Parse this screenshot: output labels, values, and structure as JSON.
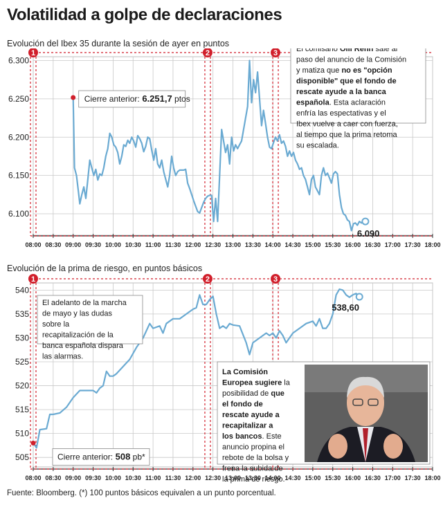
{
  "title": "Volatilidad a golpe de declaraciones",
  "source": "Fuente: Bloomberg. (*) 100 puntos básicos equivalen a un punto porcentual.",
  "colors": {
    "line": "#6aaad2",
    "grid": "#c8c8c8",
    "marker": "#d11f2b",
    "panel": "#efefef",
    "axis": "#333333"
  },
  "time_ticks": [
    "08:00",
    "08:30",
    "09:00",
    "09:30",
    "10:00",
    "10:30",
    "11:00",
    "11:30",
    "12:00",
    "12:30",
    "13:00",
    "13:30",
    "14:00",
    "14:30",
    "15:00",
    "15:30",
    "16:00",
    "16:30",
    "17:00",
    "17:30",
    "18:00"
  ],
  "chart_data": [
    {
      "type": "line",
      "title": "Evolución del Ibex 35 durante la sesión de ayer en puntos",
      "xlabel": "",
      "ylabel": "",
      "ylim": [
        6072,
        6305
      ],
      "yticks": [
        6100,
        6150,
        6200,
        6250,
        6300
      ],
      "ytick_labels": [
        "6.100",
        "6.150",
        "6.200",
        "6.250",
        "6.300"
      ],
      "series": [
        {
          "values": [
            [
              "09:00",
              6251.7
            ],
            [
              "09:02",
              6160
            ],
            [
              "09:05",
              6150
            ],
            [
              "09:08",
              6128
            ],
            [
              "09:10",
              6113
            ],
            [
              "09:13",
              6125
            ],
            [
              "09:16",
              6135
            ],
            [
              "09:19",
              6120
            ],
            [
              "09:22",
              6145
            ],
            [
              "09:25",
              6170
            ],
            [
              "09:28",
              6160
            ],
            [
              "09:31",
              6150
            ],
            [
              "09:34",
              6158
            ],
            [
              "09:37",
              6144
            ],
            [
              "09:40",
              6152
            ],
            [
              "09:43",
              6150
            ],
            [
              "09:46",
              6160
            ],
            [
              "09:49",
              6175
            ],
            [
              "09:52",
              6185
            ],
            [
              "09:55",
              6205
            ],
            [
              "09:58",
              6200
            ],
            [
              "10:01",
              6190
            ],
            [
              "10:04",
              6187
            ],
            [
              "10:07",
              6180
            ],
            [
              "10:10",
              6165
            ],
            [
              "10:13",
              6175
            ],
            [
              "10:16",
              6190
            ],
            [
              "10:19",
              6188
            ],
            [
              "10:22",
              6196
            ],
            [
              "10:25",
              6192
            ],
            [
              "10:28",
              6200
            ],
            [
              "10:31",
              6195
            ],
            [
              "10:34",
              6187
            ],
            [
              "10:37",
              6202
            ],
            [
              "10:40",
              6198
            ],
            [
              "10:43",
              6192
            ],
            [
              "10:46",
              6181
            ],
            [
              "10:49",
              6188
            ],
            [
              "10:52",
              6200
            ],
            [
              "10:55",
              6198
            ],
            [
              "10:58",
              6183
            ],
            [
              "11:01",
              6170
            ],
            [
              "11:04",
              6185
            ],
            [
              "11:07",
              6165
            ],
            [
              "11:10",
              6160
            ],
            [
              "11:13",
              6170
            ],
            [
              "11:16",
              6155
            ],
            [
              "11:19",
              6145
            ],
            [
              "11:22",
              6135
            ],
            [
              "11:25",
              6150
            ],
            [
              "11:28",
              6175
            ],
            [
              "11:31",
              6160
            ],
            [
              "11:34",
              6150
            ],
            [
              "11:37",
              6155
            ],
            [
              "11:40",
              6157
            ],
            [
              "11:43",
              6157
            ],
            [
              "11:46",
              6157
            ],
            [
              "11:49",
              6158
            ],
            [
              "11:52",
              6140
            ],
            [
              "11:55",
              6133
            ],
            [
              "11:58",
              6125
            ],
            [
              "12:01",
              6117
            ],
            [
              "12:04",
              6110
            ],
            [
              "12:07",
              6103
            ],
            [
              "12:10",
              6101
            ],
            [
              "12:13",
              6108
            ],
            [
              "12:16",
              6115
            ],
            [
              "12:19",
              6120
            ],
            [
              "12:22",
              6123
            ],
            [
              "12:25",
              6124
            ],
            [
              "12:28",
              6124
            ],
            [
              "12:31",
              6090
            ],
            [
              "12:34",
              6120
            ],
            [
              "12:37",
              6090
            ],
            [
              "12:40",
              6150
            ],
            [
              "12:43",
              6210
            ],
            [
              "12:46",
              6195
            ],
            [
              "12:49",
              6180
            ],
            [
              "12:52",
              6190
            ],
            [
              "12:55",
              6165
            ],
            [
              "12:58",
              6200
            ],
            [
              "13:01",
              6182
            ],
            [
              "13:04",
              6190
            ],
            [
              "13:07",
              6185
            ],
            [
              "13:10",
              6190
            ],
            [
              "13:13",
              6195
            ],
            [
              "13:16",
              6210
            ],
            [
              "13:19",
              6225
            ],
            [
              "13:22",
              6240
            ],
            [
              "13:25",
              6300
            ],
            [
              "13:28",
              6245
            ],
            [
              "13:31",
              6275
            ],
            [
              "13:34",
              6258
            ],
            [
              "13:37",
              6285
            ],
            [
              "13:40",
              6250
            ],
            [
              "13:43",
              6215
            ],
            [
              "13:46",
              6235
            ],
            [
              "13:49",
              6218
            ],
            [
              "13:52",
              6200
            ],
            [
              "13:55",
              6187
            ],
            [
              "13:58",
              6185
            ],
            [
              "14:01",
              6193
            ],
            [
              "14:04",
              6200
            ],
            [
              "14:07",
              6195
            ],
            [
              "14:10",
              6203
            ],
            [
              "14:13",
              6192
            ],
            [
              "14:16",
              6195
            ],
            [
              "14:19",
              6188
            ],
            [
              "14:22",
              6175
            ],
            [
              "14:25",
              6182
            ],
            [
              "14:28",
              6175
            ],
            [
              "14:31",
              6180
            ],
            [
              "14:34",
              6170
            ],
            [
              "14:37",
              6165
            ],
            [
              "14:40",
              6158
            ],
            [
              "14:43",
              6160
            ],
            [
              "14:46",
              6150
            ],
            [
              "14:49",
              6145
            ],
            [
              "14:52",
              6135
            ],
            [
              "14:55",
              6125
            ],
            [
              "14:58",
              6145
            ],
            [
              "15:01",
              6150
            ],
            [
              "15:04",
              6135
            ],
            [
              "15:07",
              6130
            ],
            [
              "15:10",
              6125
            ],
            [
              "15:13",
              6150
            ],
            [
              "15:16",
              6160
            ],
            [
              "15:19",
              6150
            ],
            [
              "15:22",
              6153
            ],
            [
              "15:25",
              6147
            ],
            [
              "15:28",
              6140
            ],
            [
              "15:31",
              6152
            ],
            [
              "15:34",
              6155
            ],
            [
              "15:37",
              6152
            ],
            [
              "15:40",
              6125
            ],
            [
              "15:43",
              6108
            ],
            [
              "15:46",
              6100
            ],
            [
              "15:49",
              6098
            ],
            [
              "15:52",
              6092
            ],
            [
              "15:55",
              6090
            ],
            [
              "15:58",
              6078
            ],
            [
              "16:01",
              6087
            ],
            [
              "16:04",
              6088
            ],
            [
              "16:07",
              6085
            ],
            [
              "16:10",
              6090
            ],
            [
              "16:13",
              6088
            ],
            [
              "16:16",
              6091
            ],
            [
              "16:19",
              6090
            ]
          ]
        }
      ],
      "start_label": "Cierre anterior:",
      "start_value": "6.251,7",
      "start_unit": "ptos",
      "end_value": "6.090",
      "markers": [
        "1",
        "2",
        "3"
      ],
      "marker_times": [
        "08:00",
        "12:22",
        "14:04"
      ],
      "annotation": {
        "p1": "El comisario ",
        "b1": "Olli Rehn",
        "p2": " sale al paso del anuncio de la Comisión y matiza que ",
        "b2": "no es \"opción disponible\" que el fondo de rescate ayude a la banca española",
        "p3": ". Esta aclaración enfría las espectativas y el Ibex vuelve a caer con fuerza, al tiempo que la prima retoma su escalada."
      }
    },
    {
      "type": "line",
      "title": "Evolución de la prima de riesgo, en puntos básicos",
      "xlabel": "",
      "ylabel": "",
      "ylim": [
        503,
        541.5
      ],
      "yticks": [
        505,
        510,
        515,
        520,
        525,
        530,
        535,
        540
      ],
      "series": [
        {
          "values": [
            [
              "08:00",
              508
            ],
            [
              "08:05",
              507
            ],
            [
              "08:10",
              510.8
            ],
            [
              "08:20",
              511
            ],
            [
              "08:25",
              514
            ],
            [
              "08:30",
              514
            ],
            [
              "08:40",
              514.3
            ],
            [
              "08:50",
              515.5
            ],
            [
              "09:00",
              517.5
            ],
            [
              "09:10",
              519
            ],
            [
              "09:20",
              519
            ],
            [
              "09:30",
              519
            ],
            [
              "09:35",
              518.5
            ],
            [
              "09:40",
              519.5
            ],
            [
              "09:45",
              520
            ],
            [
              "09:50",
              523
            ],
            [
              "09:55",
              522
            ],
            [
              "10:00",
              522
            ],
            [
              "10:05",
              522.5
            ],
            [
              "10:15",
              524
            ],
            [
              "10:25",
              525.5
            ],
            [
              "10:35",
              528
            ],
            [
              "10:45",
              530
            ],
            [
              "10:55",
              533
            ],
            [
              "11:00",
              532
            ],
            [
              "11:10",
              532.5
            ],
            [
              "11:15",
              531
            ],
            [
              "11:20",
              533
            ],
            [
              "11:30",
              534
            ],
            [
              "11:40",
              534
            ],
            [
              "11:50",
              535
            ],
            [
              "12:00",
              536
            ],
            [
              "12:05",
              536.3
            ],
            [
              "12:10",
              539
            ],
            [
              "12:15",
              537
            ],
            [
              "12:20",
              537
            ],
            [
              "12:25",
              538
            ],
            [
              "12:30",
              538.7
            ],
            [
              "12:35",
              535
            ],
            [
              "12:40",
              532
            ],
            [
              "12:45",
              532.5
            ],
            [
              "12:50",
              532
            ],
            [
              "12:55",
              533
            ],
            [
              "13:00",
              532.7
            ],
            [
              "13:10",
              532.5
            ],
            [
              "13:20",
              529
            ],
            [
              "13:25",
              526.5
            ],
            [
              "13:30",
              529
            ],
            [
              "13:40",
              530
            ],
            [
              "13:50",
              531
            ],
            [
              "13:55",
              530.5
            ],
            [
              "14:00",
              531
            ],
            [
              "14:05",
              530
            ],
            [
              "14:10",
              531.5
            ],
            [
              "14:15",
              530.5
            ],
            [
              "14:20",
              529
            ],
            [
              "14:25",
              530
            ],
            [
              "14:30",
              531
            ],
            [
              "14:40",
              532
            ],
            [
              "14:50",
              533
            ],
            [
              "15:00",
              533.5
            ],
            [
              "15:05",
              532.5
            ],
            [
              "15:10",
              534
            ],
            [
              "15:15",
              532
            ],
            [
              "15:20",
              532
            ],
            [
              "15:25",
              533
            ],
            [
              "15:30",
              535
            ],
            [
              "15:35",
              539
            ],
            [
              "15:40",
              540.2
            ],
            [
              "15:45",
              540
            ],
            [
              "15:50",
              539
            ],
            [
              "15:55",
              538.5
            ],
            [
              "16:00",
              539
            ],
            [
              "16:05",
              539.3
            ],
            [
              "16:10",
              538.6
            ]
          ]
        }
      ],
      "start_label": "Cierre anterior:",
      "start_value": "508",
      "start_unit": "pb*",
      "end_value": "538,60",
      "markers": [
        "1",
        "2",
        "3"
      ],
      "marker_times": [
        "08:00",
        "12:22",
        "14:04"
      ],
      "annotation1": "El adelanto de la marcha de mayo y las dudas sobre la recapitalización de la banca española dispara las alarmas.",
      "annotation2": {
        "b1": "La Comisión Europea sugiere",
        "p1": " la posibilidad de ",
        "b2": "que el fondo de rescate ayude a recapitalizar a los bancos",
        "p2": ". Este anuncio propina el rebote de la bolsa y frena la subida de la prima de riesgo."
      }
    }
  ]
}
